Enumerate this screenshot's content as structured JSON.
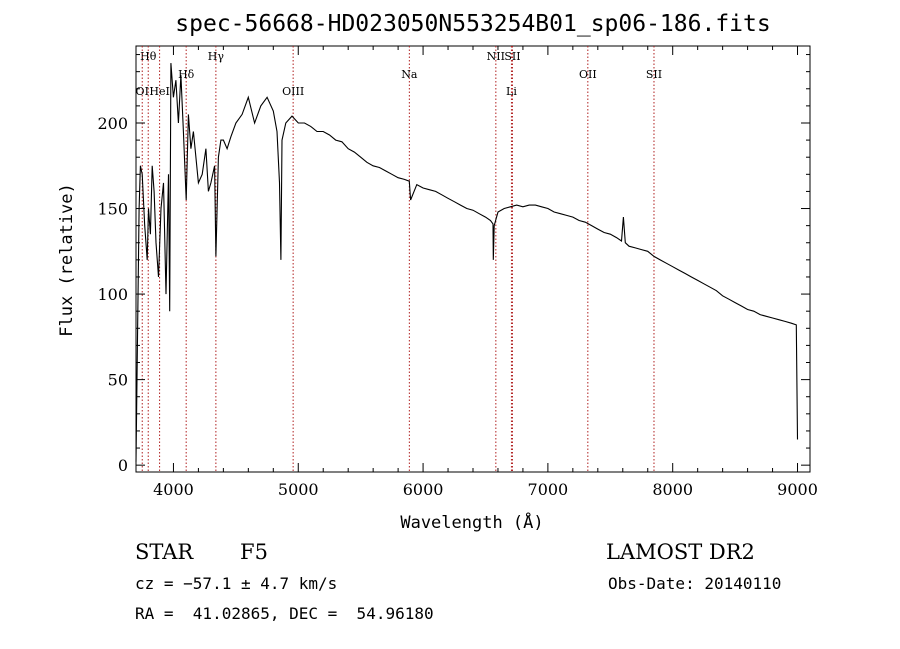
{
  "chart_data": {
    "type": "line",
    "title": "spec-56668-HD023050N553254B01_sp06-186.fits",
    "xlabel": "Wavelength (Å)",
    "ylabel": "Flux (relative)",
    "xlim": [
      3700,
      9100
    ],
    "ylim": [
      -4,
      245
    ],
    "xticks": [
      4000,
      5000,
      6000,
      7000,
      8000,
      9000
    ],
    "yticks": [
      0,
      50,
      100,
      150,
      200
    ],
    "grid": false,
    "series": [
      {
        "x": [
          3700,
          3710,
          3725,
          3735,
          3750,
          3770,
          3790,
          3800,
          3815,
          3830,
          3845,
          3860,
          3880,
          3900,
          3920,
          3940,
          3960,
          3970,
          3980,
          4000,
          4020,
          4040,
          4060,
          4080,
          4102,
          4120,
          4140,
          4160,
          4180,
          4200,
          4230,
          4260,
          4280,
          4300,
          4330,
          4340,
          4360,
          4380,
          4400,
          4430,
          4460,
          4500,
          4550,
          4600,
          4650,
          4700,
          4750,
          4800,
          4830,
          4850,
          4861,
          4870,
          4900,
          4950,
          5000,
          5050,
          5100,
          5150,
          5200,
          5250,
          5300,
          5350,
          5400,
          5450,
          5500,
          5550,
          5600,
          5650,
          5700,
          5750,
          5800,
          5850,
          5890,
          5900,
          5950,
          6000,
          6050,
          6100,
          6150,
          6200,
          6250,
          6300,
          6350,
          6400,
          6450,
          6500,
          6540,
          6560,
          6563,
          6570,
          6600,
          6650,
          6700,
          6750,
          6800,
          6850,
          6900,
          6950,
          7000,
          7050,
          7100,
          7150,
          7200,
          7250,
          7300,
          7350,
          7400,
          7450,
          7500,
          7550,
          7590,
          7605,
          7620,
          7650,
          7700,
          7750,
          7800,
          7850,
          7900,
          7950,
          8000,
          8050,
          8100,
          8150,
          8200,
          8250,
          8300,
          8350,
          8400,
          8450,
          8500,
          8550,
          8600,
          8650,
          8700,
          8750,
          8800,
          8850,
          8900,
          8950,
          8990,
          9000
        ],
        "y": [
          2,
          60,
          150,
          175,
          170,
          140,
          120,
          150,
          135,
          175,
          160,
          130,
          110,
          150,
          165,
          100,
          170,
          90,
          235,
          215,
          225,
          200,
          228,
          195,
          155,
          205,
          185,
          195,
          180,
          165,
          170,
          185,
          160,
          165,
          175,
          122,
          180,
          190,
          190,
          185,
          192,
          200,
          205,
          215,
          200,
          210,
          215,
          207,
          195,
          165,
          120,
          190,
          200,
          204,
          200,
          200,
          198,
          195,
          195,
          193,
          190,
          189,
          185,
          183,
          180,
          177,
          175,
          174,
          172,
          170,
          168,
          167,
          166,
          155,
          164,
          162,
          161,
          160,
          158,
          156,
          154,
          152,
          150,
          149,
          147,
          145,
          143,
          141,
          120,
          140,
          148,
          150,
          151,
          152,
          151,
          152,
          152,
          151,
          150,
          148,
          147,
          146,
          145,
          143,
          142,
          140,
          138,
          136,
          135,
          133,
          131,
          145,
          130,
          128,
          127,
          126,
          125,
          122,
          120,
          118,
          116,
          114,
          112,
          110,
          108,
          106,
          104,
          102,
          99,
          97,
          95,
          93,
          91,
          90,
          88,
          87,
          86,
          85,
          84,
          83,
          82,
          15
        ]
      }
    ],
    "line_marks": [
      {
        "label": "Hθ",
        "x": 3798,
        "row": 0
      },
      {
        "label": "OI",
        "x": 3750,
        "row": 2
      },
      {
        "label": "HeI",
        "x": 3889,
        "row": 2
      },
      {
        "label": "Hδ",
        "x": 4102,
        "row": 1
      },
      {
        "label": "Hγ",
        "x": 4340,
        "row": 0
      },
      {
        "label": "OIII",
        "x": 4959,
        "row": 2
      },
      {
        "label": "Na",
        "x": 5890,
        "row": 1
      },
      {
        "label": "NII",
        "x": 6583,
        "row": 0
      },
      {
        "label": "SII",
        "x": 6716,
        "row": 0
      },
      {
        "label": "Li",
        "x": 6708,
        "row": 2
      },
      {
        "label": "OII",
        "x": 7320,
        "row": 1
      },
      {
        "label": "SII",
        "x": 7850,
        "row": 1
      }
    ]
  },
  "info": {
    "class_label": "STAR",
    "subclass": "F5",
    "survey": "LAMOST DR2",
    "cz": "cz = −57.1 ± 4.7 km/s",
    "obs_date": "Obs-Date: 20140110",
    "coords": "RA =  41.02865, DEC =  54.96180"
  }
}
